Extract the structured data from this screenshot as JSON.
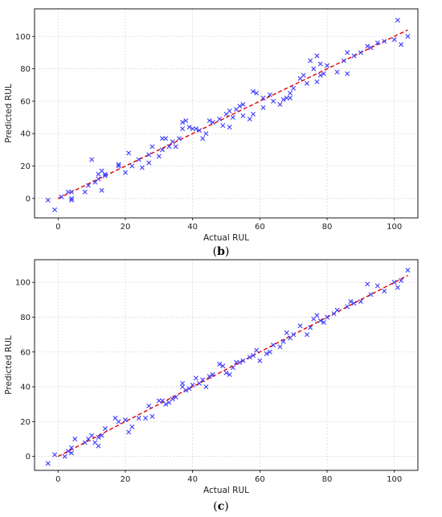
{
  "chart_data": [
    {
      "type": "scatter",
      "caption_letter": "b",
      "caption_open": "(",
      "caption_close": ")",
      "xlabel": "Actual RUL",
      "ylabel": "Predicted RUL",
      "xlim": [
        -7,
        107
      ],
      "ylim": [
        -12,
        117
      ],
      "xticks": [
        0,
        20,
        40,
        60,
        80,
        100
      ],
      "yticks": [
        0,
        20,
        40,
        60,
        80,
        100
      ],
      "grid": true,
      "marker_color": "#3a3aff",
      "reference_line": {
        "color": "#e00000",
        "from": [
          0,
          0
        ],
        "to": [
          104,
          104
        ]
      },
      "points": [
        [
          -3,
          -1
        ],
        [
          -1,
          -7
        ],
        [
          1,
          1
        ],
        [
          3,
          4
        ],
        [
          4,
          -1
        ],
        [
          4,
          4
        ],
        [
          4,
          0
        ],
        [
          8,
          4
        ],
        [
          9,
          8
        ],
        [
          10,
          24
        ],
        [
          11,
          10
        ],
        [
          12,
          15
        ],
        [
          12,
          12
        ],
        [
          13,
          17
        ],
        [
          13,
          5
        ],
        [
          14,
          15
        ],
        [
          14,
          14
        ],
        [
          18,
          21
        ],
        [
          18,
          20
        ],
        [
          20,
          16
        ],
        [
          21,
          28
        ],
        [
          22,
          20
        ],
        [
          24,
          24
        ],
        [
          25,
          19
        ],
        [
          27,
          27
        ],
        [
          27,
          22
        ],
        [
          28,
          32
        ],
        [
          30,
          26
        ],
        [
          31,
          30
        ],
        [
          31,
          37
        ],
        [
          32,
          37
        ],
        [
          33,
          32
        ],
        [
          34,
          35
        ],
        [
          35,
          32
        ],
        [
          36,
          37
        ],
        [
          37,
          47
        ],
        [
          37,
          43
        ],
        [
          38,
          48
        ],
        [
          39,
          44
        ],
        [
          40,
          43
        ],
        [
          41,
          43
        ],
        [
          42,
          42
        ],
        [
          43,
          37
        ],
        [
          44,
          40
        ],
        [
          45,
          48
        ],
        [
          46,
          47
        ],
        [
          48,
          49
        ],
        [
          49,
          45
        ],
        [
          50,
          52
        ],
        [
          51,
          54
        ],
        [
          51,
          44
        ],
        [
          52,
          50
        ],
        [
          53,
          55
        ],
        [
          54,
          57
        ],
        [
          55,
          58
        ],
        [
          55,
          51
        ],
        [
          57,
          49
        ],
        [
          58,
          52
        ],
        [
          58,
          66
        ],
        [
          59,
          65
        ],
        [
          61,
          62
        ],
        [
          61,
          56
        ],
        [
          63,
          64
        ],
        [
          64,
          60
        ],
        [
          66,
          58
        ],
        [
          67,
          61
        ],
        [
          68,
          62
        ],
        [
          69,
          65
        ],
        [
          69,
          62
        ],
        [
          70,
          68
        ],
        [
          72,
          74
        ],
        [
          73,
          76
        ],
        [
          74,
          71
        ],
        [
          75,
          85
        ],
        [
          76,
          80
        ],
        [
          77,
          88
        ],
        [
          77,
          72
        ],
        [
          78,
          83
        ],
        [
          78,
          76
        ],
        [
          79,
          77
        ],
        [
          80,
          82
        ],
        [
          83,
          78
        ],
        [
          85,
          85
        ],
        [
          86,
          90
        ],
        [
          86,
          77
        ],
        [
          88,
          88
        ],
        [
          90,
          90
        ],
        [
          92,
          94
        ],
        [
          93,
          93
        ],
        [
          95,
          96
        ],
        [
          97,
          97
        ],
        [
          100,
          98
        ],
        [
          101,
          110
        ],
        [
          102,
          95
        ],
        [
          104,
          100
        ]
      ]
    },
    {
      "type": "scatter",
      "caption_letter": "c",
      "caption_open": "(",
      "caption_close": ")",
      "xlabel": "Actual RUL",
      "ylabel": "Predicted RUL",
      "xlim": [
        -7,
        107
      ],
      "ylim": [
        -8,
        113
      ],
      "xticks": [
        0,
        20,
        40,
        60,
        80,
        100
      ],
      "yticks": [
        0,
        20,
        40,
        60,
        80,
        100
      ],
      "grid": true,
      "marker_color": "#3a3aff",
      "reference_line": {
        "color": "#e00000",
        "from": [
          0,
          0
        ],
        "to": [
          104,
          104
        ]
      },
      "points": [
        [
          -3,
          -4
        ],
        [
          -1,
          1
        ],
        [
          2,
          0
        ],
        [
          3,
          3
        ],
        [
          4,
          5
        ],
        [
          4,
          2
        ],
        [
          5,
          10
        ],
        [
          8,
          8
        ],
        [
          9,
          10
        ],
        [
          10,
          12
        ],
        [
          11,
          8
        ],
        [
          12,
          11
        ],
        [
          12,
          6
        ],
        [
          13,
          12
        ],
        [
          14,
          16
        ],
        [
          17,
          22
        ],
        [
          18,
          20
        ],
        [
          20,
          21
        ],
        [
          21,
          14
        ],
        [
          22,
          17
        ],
        [
          24,
          22
        ],
        [
          26,
          22
        ],
        [
          27,
          29
        ],
        [
          28,
          23
        ],
        [
          30,
          32
        ],
        [
          31,
          32
        ],
        [
          32,
          30
        ],
        [
          33,
          31
        ],
        [
          34,
          33
        ],
        [
          35,
          34
        ],
        [
          37,
          40
        ],
        [
          37,
          42
        ],
        [
          38,
          38
        ],
        [
          39,
          39
        ],
        [
          40,
          41
        ],
        [
          41,
          45
        ],
        [
          42,
          42
        ],
        [
          43,
          44
        ],
        [
          44,
          40
        ],
        [
          45,
          46
        ],
        [
          46,
          47
        ],
        [
          48,
          53
        ],
        [
          49,
          52
        ],
        [
          50,
          48
        ],
        [
          51,
          47
        ],
        [
          52,
          51
        ],
        [
          53,
          54
        ],
        [
          54,
          54
        ],
        [
          55,
          55
        ],
        [
          57,
          57
        ],
        [
          58,
          58
        ],
        [
          59,
          61
        ],
        [
          60,
          55
        ],
        [
          62,
          59
        ],
        [
          63,
          60
        ],
        [
          64,
          64
        ],
        [
          66,
          63
        ],
        [
          67,
          66
        ],
        [
          68,
          71
        ],
        [
          69,
          68
        ],
        [
          70,
          70
        ],
        [
          72,
          75
        ],
        [
          74,
          70
        ],
        [
          75,
          74
        ],
        [
          76,
          79
        ],
        [
          77,
          81
        ],
        [
          78,
          78
        ],
        [
          79,
          77
        ],
        [
          80,
          80
        ],
        [
          82,
          82
        ],
        [
          83,
          84
        ],
        [
          86,
          86
        ],
        [
          87,
          89
        ],
        [
          88,
          88
        ],
        [
          90,
          89
        ],
        [
          92,
          99
        ],
        [
          93,
          93
        ],
        [
          95,
          98
        ],
        [
          97,
          95
        ],
        [
          100,
          100
        ],
        [
          101,
          97
        ],
        [
          102,
          101
        ],
        [
          104,
          107
        ]
      ]
    }
  ]
}
